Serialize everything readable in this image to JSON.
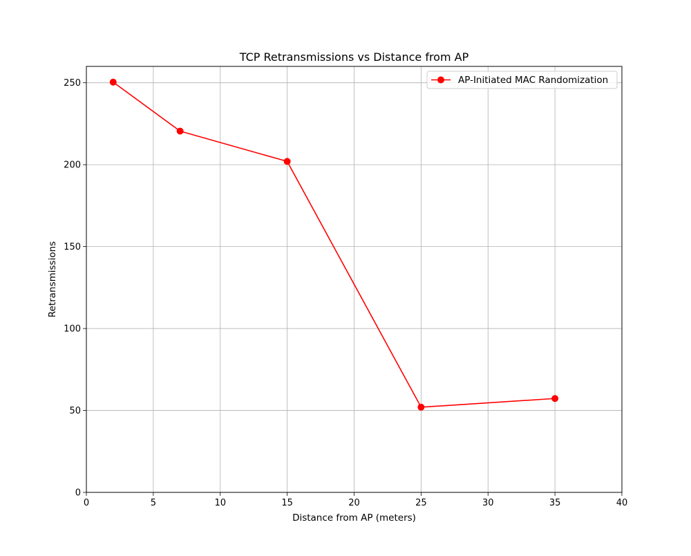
{
  "chart_data": {
    "type": "line",
    "title": "TCP Retransmissions vs Distance from AP",
    "xlabel": "Distance from AP (meters)",
    "ylabel": "Retransmissions",
    "xlim": [
      0,
      40
    ],
    "ylim": [
      0,
      260
    ],
    "xticks": [
      0,
      5,
      10,
      15,
      20,
      25,
      30,
      35,
      40
    ],
    "yticks": [
      0,
      50,
      100,
      150,
      200,
      250
    ],
    "grid": true,
    "legend_position": "upper-right",
    "series": [
      {
        "name": "AP-Initiated MAC Randomization",
        "color": "#ff0000",
        "marker": "circle",
        "x": [
          2,
          7,
          15,
          25,
          35
        ],
        "y": [
          250.4,
          220.5,
          202.0,
          52.0,
          57.3
        ]
      }
    ]
  }
}
